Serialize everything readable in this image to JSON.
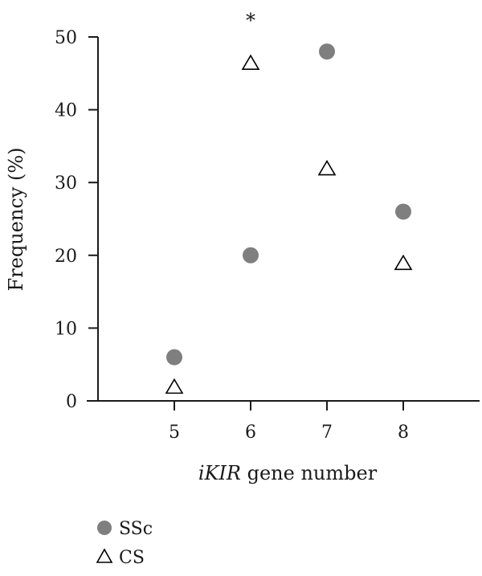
{
  "chart_data": {
    "type": "scatter",
    "title": "",
    "xlabel_italic": "iKIR",
    "xlabel_rest": " gene number",
    "ylabel": "Frequency (%)",
    "xlim": [
      4,
      9
    ],
    "ylim": [
      0,
      50
    ],
    "x_ticks": [
      "5",
      "6",
      "7",
      "8"
    ],
    "y_ticks": [
      "0",
      "10",
      "20",
      "30",
      "40",
      "50"
    ],
    "grid": false,
    "legend_position": "bottom-left",
    "series": [
      {
        "name": "SSc",
        "marker": "filled-circle",
        "color": "#7f7f7f",
        "points": [
          {
            "x": 5,
            "y": 6
          },
          {
            "x": 6,
            "y": 20
          },
          {
            "x": 7,
            "y": 48
          },
          {
            "x": 8,
            "y": 26
          }
        ]
      },
      {
        "name": "CS",
        "marker": "open-triangle",
        "color": "#000000",
        "points": [
          {
            "x": 5,
            "y": 2
          },
          {
            "x": 6,
            "y": 46.5
          },
          {
            "x": 7,
            "y": 32
          },
          {
            "x": 8,
            "y": 19
          }
        ]
      }
    ],
    "annotations": [
      {
        "text": "*",
        "x": 6,
        "y": 52.5
      }
    ]
  }
}
